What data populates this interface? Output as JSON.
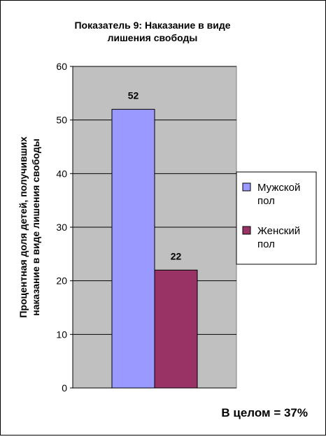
{
  "chart_data": {
    "type": "bar",
    "title_lines": [
      "Показатель 9: Наказание в виде",
      "лишения свободы"
    ],
    "ylabel_lines": [
      "Процентная доля детей, получивших",
      "наказание в виде лишения свободы"
    ],
    "xlabel": "",
    "ylim": [
      0,
      60
    ],
    "yticks": [
      0,
      10,
      20,
      30,
      40,
      50,
      60
    ],
    "grid": true,
    "legend_position": "right",
    "series": [
      {
        "name_lines": [
          "Мужской",
          "пол"
        ],
        "value": 52,
        "color": "#9999ff"
      },
      {
        "name_lines": [
          "Женский",
          "пол"
        ],
        "value": 22,
        "color": "#993366"
      }
    ],
    "annotation": "В целом = 37%"
  },
  "colors": {
    "plot_background": "#c0c0c0",
    "gridline": "#000000",
    "border": "#000000"
  }
}
